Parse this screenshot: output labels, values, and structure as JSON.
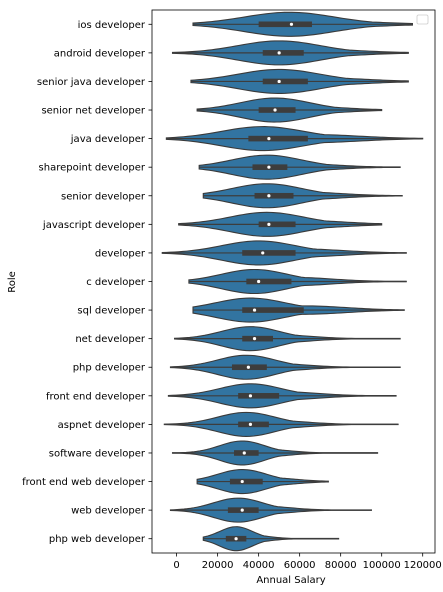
{
  "chart_data": {
    "type": "violin",
    "orientation": "horizontal",
    "xlabel": "Annual Salary",
    "ylabel": "Role",
    "xlim": [
      -12000,
      126000
    ],
    "xticks": [
      0,
      20000,
      40000,
      60000,
      80000,
      100000,
      120000
    ],
    "xtick_labels": [
      "0",
      "20000",
      "40000",
      "60000",
      "80000",
      "100000",
      "120000"
    ],
    "grid": false,
    "legend": {
      "placement": "top-right",
      "entries": []
    },
    "colors": {
      "violin_fill": "#3274A1",
      "edge": "#3a3a3a",
      "box": "#3d3d3d",
      "median": "#ffffff"
    },
    "categories": [
      "ios developer",
      "android developer",
      "senior java developer",
      "senior net developer",
      "java developer",
      "sharepoint developer",
      "senior developer",
      "javascript developer",
      "developer",
      "c developer",
      "sql developer",
      "net developer",
      "php developer",
      "front end developer",
      "aspnet developer",
      "software developer",
      "front end web developer",
      "web developer",
      "php web developer"
    ],
    "distributions": [
      {
        "min": 8000,
        "max": 115000,
        "q1": 40000,
        "median": 56000,
        "q3": 66000,
        "mode": 55000,
        "spread": 22000
      },
      {
        "min": -2000,
        "max": 113000,
        "q1": 42000,
        "median": 50000,
        "q3": 62000,
        "mode": 50000,
        "spread": 20000
      },
      {
        "min": 7000,
        "max": 113000,
        "q1": 42000,
        "median": 50000,
        "q3": 64000,
        "mode": 50000,
        "spread": 20000
      },
      {
        "min": 10000,
        "max": 100000,
        "q1": 40000,
        "median": 48000,
        "q3": 58000,
        "mode": 48000,
        "spread": 17000
      },
      {
        "min": -5000,
        "max": 120000,
        "q1": 35000,
        "median": 45000,
        "q3": 64000,
        "mode": 42000,
        "spread": 20000
      },
      {
        "min": 11000,
        "max": 109000,
        "q1": 37000,
        "median": 45000,
        "q3": 54000,
        "mode": 44000,
        "spread": 17000
      },
      {
        "min": 13000,
        "max": 110000,
        "q1": 38000,
        "median": 45000,
        "q3": 57000,
        "mode": 44000,
        "spread": 17000
      },
      {
        "min": 1000,
        "max": 100000,
        "q1": 40000,
        "median": 45000,
        "q3": 58000,
        "mode": 44000,
        "spread": 18000
      },
      {
        "min": -7000,
        "max": 112000,
        "q1": 32000,
        "median": 42000,
        "q3": 58000,
        "mode": 40000,
        "spread": 18000
      },
      {
        "min": 6000,
        "max": 112000,
        "q1": 34000,
        "median": 40000,
        "q3": 56000,
        "mode": 38000,
        "spread": 16000
      },
      {
        "min": 8000,
        "max": 111000,
        "q1": 32000,
        "median": 38000,
        "q3": 62000,
        "mode": 36000,
        "spread": 17000
      },
      {
        "min": -1000,
        "max": 109000,
        "q1": 32000,
        "median": 38000,
        "q3": 47000,
        "mode": 36000,
        "spread": 14000
      },
      {
        "min": -3000,
        "max": 109000,
        "q1": 27000,
        "median": 35000,
        "q3": 44000,
        "mode": 34000,
        "spread": 14000
      },
      {
        "min": -4000,
        "max": 107000,
        "q1": 30000,
        "median": 36000,
        "q3": 50000,
        "mode": 36000,
        "spread": 15000
      },
      {
        "min": -6000,
        "max": 108000,
        "q1": 30000,
        "median": 36000,
        "q3": 45000,
        "mode": 34000,
        "spread": 14000
      },
      {
        "min": -2000,
        "max": 98000,
        "q1": 28000,
        "median": 33000,
        "q3": 40000,
        "mode": 32000,
        "spread": 11000
      },
      {
        "min": 10000,
        "max": 74000,
        "q1": 26000,
        "median": 32000,
        "q3": 42000,
        "mode": 32000,
        "spread": 12000
      },
      {
        "min": -3000,
        "max": 95000,
        "q1": 25000,
        "median": 32000,
        "q3": 40000,
        "mode": 30000,
        "spread": 12000
      },
      {
        "min": 13000,
        "max": 79000,
        "q1": 24000,
        "median": 29000,
        "q3": 34000,
        "mode": 29000,
        "spread": 8000
      }
    ]
  }
}
